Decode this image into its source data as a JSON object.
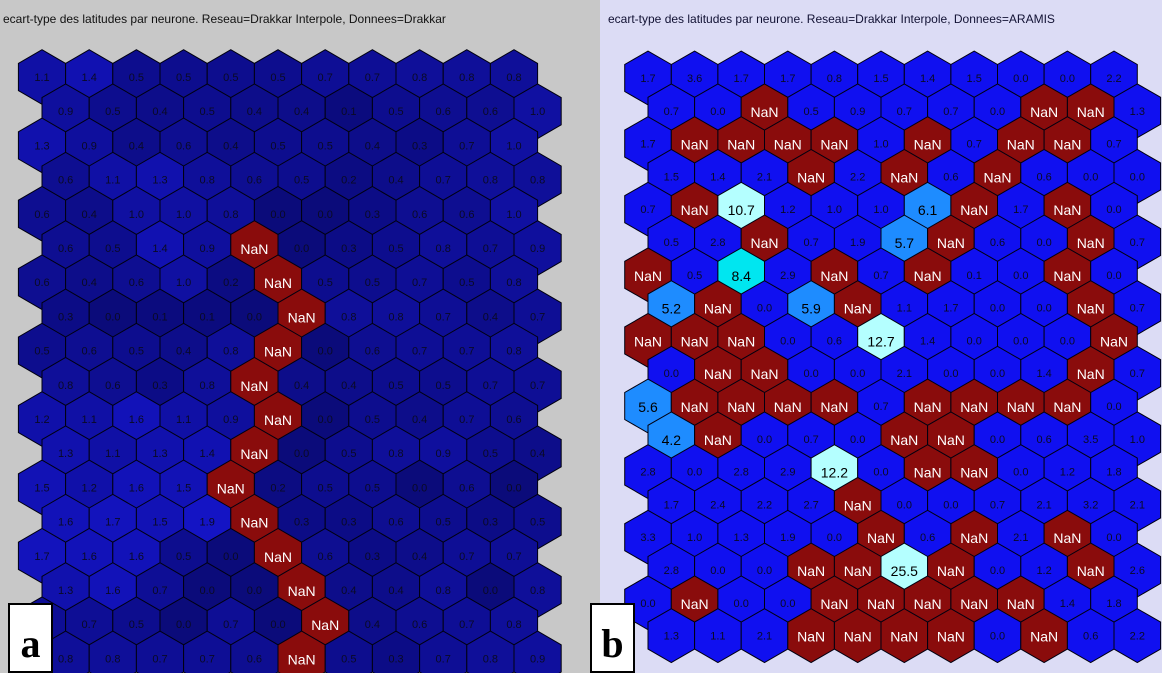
{
  "chart_data": [
    {
      "type": "heatmap",
      "layout": "hexagonal",
      "title": "ecart-type des latitudes par neurone. Reseau=Drakkar Interpole, Donnees=Drakkar",
      "panel_label": "a",
      "rows": [
        [
          "1.1",
          "1.4",
          "0.5",
          "0.5",
          "0.5",
          "0.5",
          "0.7",
          "0.7",
          "0.8",
          "0.8",
          "0.8"
        ],
        [
          "0.9",
          "0.5",
          "0.4",
          "0.5",
          "0.4",
          "0.4",
          "0.1",
          "0.5",
          "0.6",
          "0.6",
          "1.0"
        ],
        [
          "1.3",
          "0.9",
          "0.4",
          "0.6",
          "0.4",
          "0.5",
          "0.5",
          "0.4",
          "0.3",
          "0.7",
          "1.0"
        ],
        [
          "0.6",
          "1.1",
          "1.3",
          "0.8",
          "0.6",
          "0.5",
          "0.2",
          "0.4",
          "0.7",
          "0.8",
          "0.8"
        ],
        [
          "0.6",
          "0.4",
          "1.0",
          "1.0",
          "0.8",
          "0.0",
          "0.0",
          "0.3",
          "0.6",
          "0.6",
          "1.0"
        ],
        [
          "0.6",
          "0.5",
          "1.4",
          "0.9",
          "NaN",
          "0.0",
          "0.3",
          "0.5",
          "0.8",
          "0.7",
          "0.9"
        ],
        [
          "0.6",
          "0.4",
          "0.6",
          "1.0",
          "0.2",
          "NaN",
          "0.5",
          "0.5",
          "0.7",
          "0.5",
          "0.8"
        ],
        [
          "0.3",
          "0.0",
          "0.1",
          "0.1",
          "0.0",
          "NaN",
          "0.8",
          "0.8",
          "0.7",
          "0.4",
          "0.7"
        ],
        [
          "0.5",
          "0.6",
          "0.5",
          "0.4",
          "0.8",
          "NaN",
          "0.0",
          "0.6",
          "0.7",
          "0.7",
          "0.8"
        ],
        [
          "0.8",
          "0.6",
          "0.3",
          "0.8",
          "NaN",
          "0.4",
          "0.4",
          "0.5",
          "0.5",
          "0.7",
          "0.7"
        ],
        [
          "1.2",
          "1.1",
          "1.6",
          "1.1",
          "0.9",
          "NaN",
          "0.0",
          "0.5",
          "0.4",
          "0.7",
          "0.6"
        ],
        [
          "1.3",
          "1.1",
          "1.3",
          "1.4",
          "NaN",
          "0.0",
          "0.5",
          "0.8",
          "0.9",
          "0.5",
          "0.4"
        ],
        [
          "1.5",
          "1.2",
          "1.6",
          "1.5",
          "NaN",
          "0.2",
          "0.5",
          "0.5",
          "0.0",
          "0.6",
          "0.0"
        ],
        [
          "1.6",
          "1.7",
          "1.5",
          "1.9",
          "NaN",
          "0.3",
          "0.3",
          "0.6",
          "0.5",
          "0.3",
          "0.5"
        ],
        [
          "1.7",
          "1.6",
          "1.6",
          "0.5",
          "0.0",
          "NaN",
          "0.6",
          "0.3",
          "0.4",
          "0.7",
          "0.7"
        ],
        [
          "1.3",
          "1.6",
          "0.7",
          "0.0",
          "0.0",
          "NaN",
          "0.4",
          "0.4",
          "0.8",
          "0.0",
          "0.8"
        ],
        [
          "0.7",
          "0.7",
          "0.5",
          "0.0",
          "0.7",
          "0.0",
          "NaN",
          "0.4",
          "0.6",
          "0.7",
          "0.8"
        ],
        [
          "0.8",
          "0.8",
          "0.7",
          "0.7",
          "0.6",
          "NaN",
          "0.5",
          "0.3",
          "0.7",
          "0.8",
          "0.9"
        ]
      ],
      "colors": {
        "background": "#c8c8c8",
        "nan": "#8a0c0c",
        "low": "#0b0b7a",
        "high": "#1414c8"
      }
    },
    {
      "type": "heatmap",
      "layout": "hexagonal",
      "title": "ecart-type des latitudes par neurone. Reseau=Drakkar Interpole, Donnees=ARAMIS",
      "panel_label": "b",
      "rows": [
        [
          "1.7",
          "3.6",
          "1.7",
          "1.7",
          "0.8",
          "1.5",
          "1.4",
          "1.5",
          "0.0",
          "0.0",
          "2.2"
        ],
        [
          "0.7",
          "0.0",
          "NaN",
          "0.5",
          "0.9",
          "0.7",
          "0.7",
          "0.0",
          "NaN",
          "NaN",
          "1.3"
        ],
        [
          "1.7",
          "NaN",
          "NaN",
          "NaN",
          "NaN",
          "1.0",
          "NaN",
          "0.7",
          "NaN",
          "NaN",
          "0.7"
        ],
        [
          "1.5",
          "1.4",
          "2.1",
          "NaN",
          "2.2",
          "NaN",
          "0.6",
          "NaN",
          "0.6",
          "0.0",
          "0.0"
        ],
        [
          "0.7",
          "NaN",
          "10.7",
          "1.2",
          "1.0",
          "1.0",
          "6.1",
          "NaN",
          "1.7",
          "NaN",
          "0.0"
        ],
        [
          "0.5",
          "2.8",
          "NaN",
          "0.7",
          "1.9",
          "5.7",
          "NaN",
          "0.6",
          "0.0",
          "NaN",
          "0.7"
        ],
        [
          "NaN",
          "0.5",
          "8.4",
          "2.9",
          "NaN",
          "0.7",
          "NaN",
          "0.1",
          "0.0",
          "NaN",
          "0.0"
        ],
        [
          "5.2",
          "NaN",
          "0.0",
          "5.9",
          "NaN",
          "1.1",
          "1.7",
          "0.0",
          "0.0",
          "NaN",
          "0.7"
        ],
        [
          "NaN",
          "NaN",
          "NaN",
          "0.0",
          "0.6",
          "12.7",
          "1.4",
          "0.0",
          "0.0",
          "0.0",
          "NaN"
        ],
        [
          "0.0",
          "NaN",
          "NaN",
          "0.0",
          "0.0",
          "2.1",
          "0.0",
          "0.0",
          "1.4",
          "NaN",
          "0.7"
        ],
        [
          "5.6",
          "NaN",
          "NaN",
          "NaN",
          "NaN",
          "0.7",
          "NaN",
          "NaN",
          "NaN",
          "NaN",
          "0.0"
        ],
        [
          "4.2",
          "NaN",
          "0.0",
          "0.7",
          "0.0",
          "NaN",
          "NaN",
          "0.0",
          "0.6",
          "3.5",
          "1.0"
        ],
        [
          "2.8",
          "0.0",
          "2.8",
          "2.9",
          "12.2",
          "0.0",
          "NaN",
          "NaN",
          "0.0",
          "1.2",
          "1.8"
        ],
        [
          "1.7",
          "2.4",
          "2.2",
          "2.7",
          "NaN",
          "0.0",
          "0.0",
          "0.7",
          "2.1",
          "3.2",
          "2.1"
        ],
        [
          "3.3",
          "1.0",
          "1.3",
          "1.9",
          "0.0",
          "NaN",
          "0.6",
          "NaN",
          "2.1",
          "NaN",
          "0.0"
        ],
        [
          "2.8",
          "0.0",
          "0.0",
          "NaN",
          "NaN",
          "25.5",
          "NaN",
          "0.0",
          "1.2",
          "NaN",
          "2.6"
        ],
        [
          "0.0",
          "NaN",
          "0.0",
          "0.0",
          "NaN",
          "NaN",
          "NaN",
          "NaN",
          "NaN",
          "1.4",
          "1.8"
        ],
        [
          "1.3",
          "1.1",
          "2.1",
          "NaN",
          "NaN",
          "NaN",
          "NaN",
          "0.0",
          "NaN",
          "0.6",
          "2.2"
        ]
      ],
      "colors": {
        "background": "#dcdcf5",
        "nan": "#8a0c0c",
        "low": "#1010f0",
        "mid": "#1e8cff",
        "high": "#00e6f0",
        "very_high": "#b4ffff"
      }
    }
  ]
}
